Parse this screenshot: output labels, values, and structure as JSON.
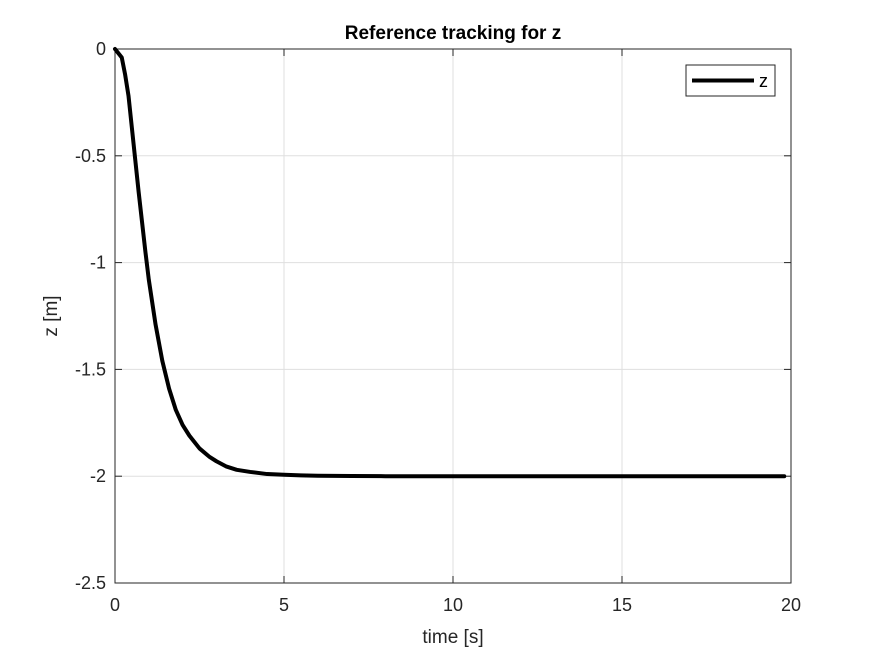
{
  "chart_data": {
    "type": "line",
    "title": "Reference tracking for z",
    "xlabel": "time [s]",
    "ylabel": "z [m]",
    "xlim": [
      0,
      20
    ],
    "ylim": [
      -2.5,
      0
    ],
    "xticks": [
      0,
      5,
      10,
      15,
      20
    ],
    "yticks": [
      0,
      -0.5,
      -1,
      -1.5,
      -2,
      -2.5
    ],
    "xtick_labels": [
      "0",
      "5",
      "10",
      "15",
      "20"
    ],
    "ytick_labels": [
      "0",
      "-0.5",
      "-1",
      "-1.5",
      "-2",
      "-2.5"
    ],
    "grid": true,
    "legend_position": "top-right",
    "series": [
      {
        "name": "z",
        "color": "#000000",
        "x": [
          0,
          0.1,
          0.2,
          0.3,
          0.4,
          0.5,
          0.6,
          0.7,
          0.8,
          0.9,
          1.0,
          1.2,
          1.4,
          1.6,
          1.8,
          2.0,
          2.2,
          2.5,
          2.8,
          3.0,
          3.3,
          3.6,
          4.0,
          4.5,
          5.0,
          5.5,
          6.0,
          7.0,
          8.0,
          10.0,
          12.0,
          15.0,
          19.8
        ],
        "y": [
          0,
          -0.02,
          -0.04,
          -0.12,
          -0.22,
          -0.37,
          -0.52,
          -0.67,
          -0.81,
          -0.95,
          -1.08,
          -1.29,
          -1.46,
          -1.59,
          -1.69,
          -1.76,
          -1.81,
          -1.87,
          -1.91,
          -1.93,
          -1.955,
          -1.97,
          -1.98,
          -1.99,
          -1.993,
          -1.996,
          -1.998,
          -1.999,
          -2.0,
          -2.0,
          -2.0,
          -2.0,
          -2.0
        ]
      }
    ]
  }
}
